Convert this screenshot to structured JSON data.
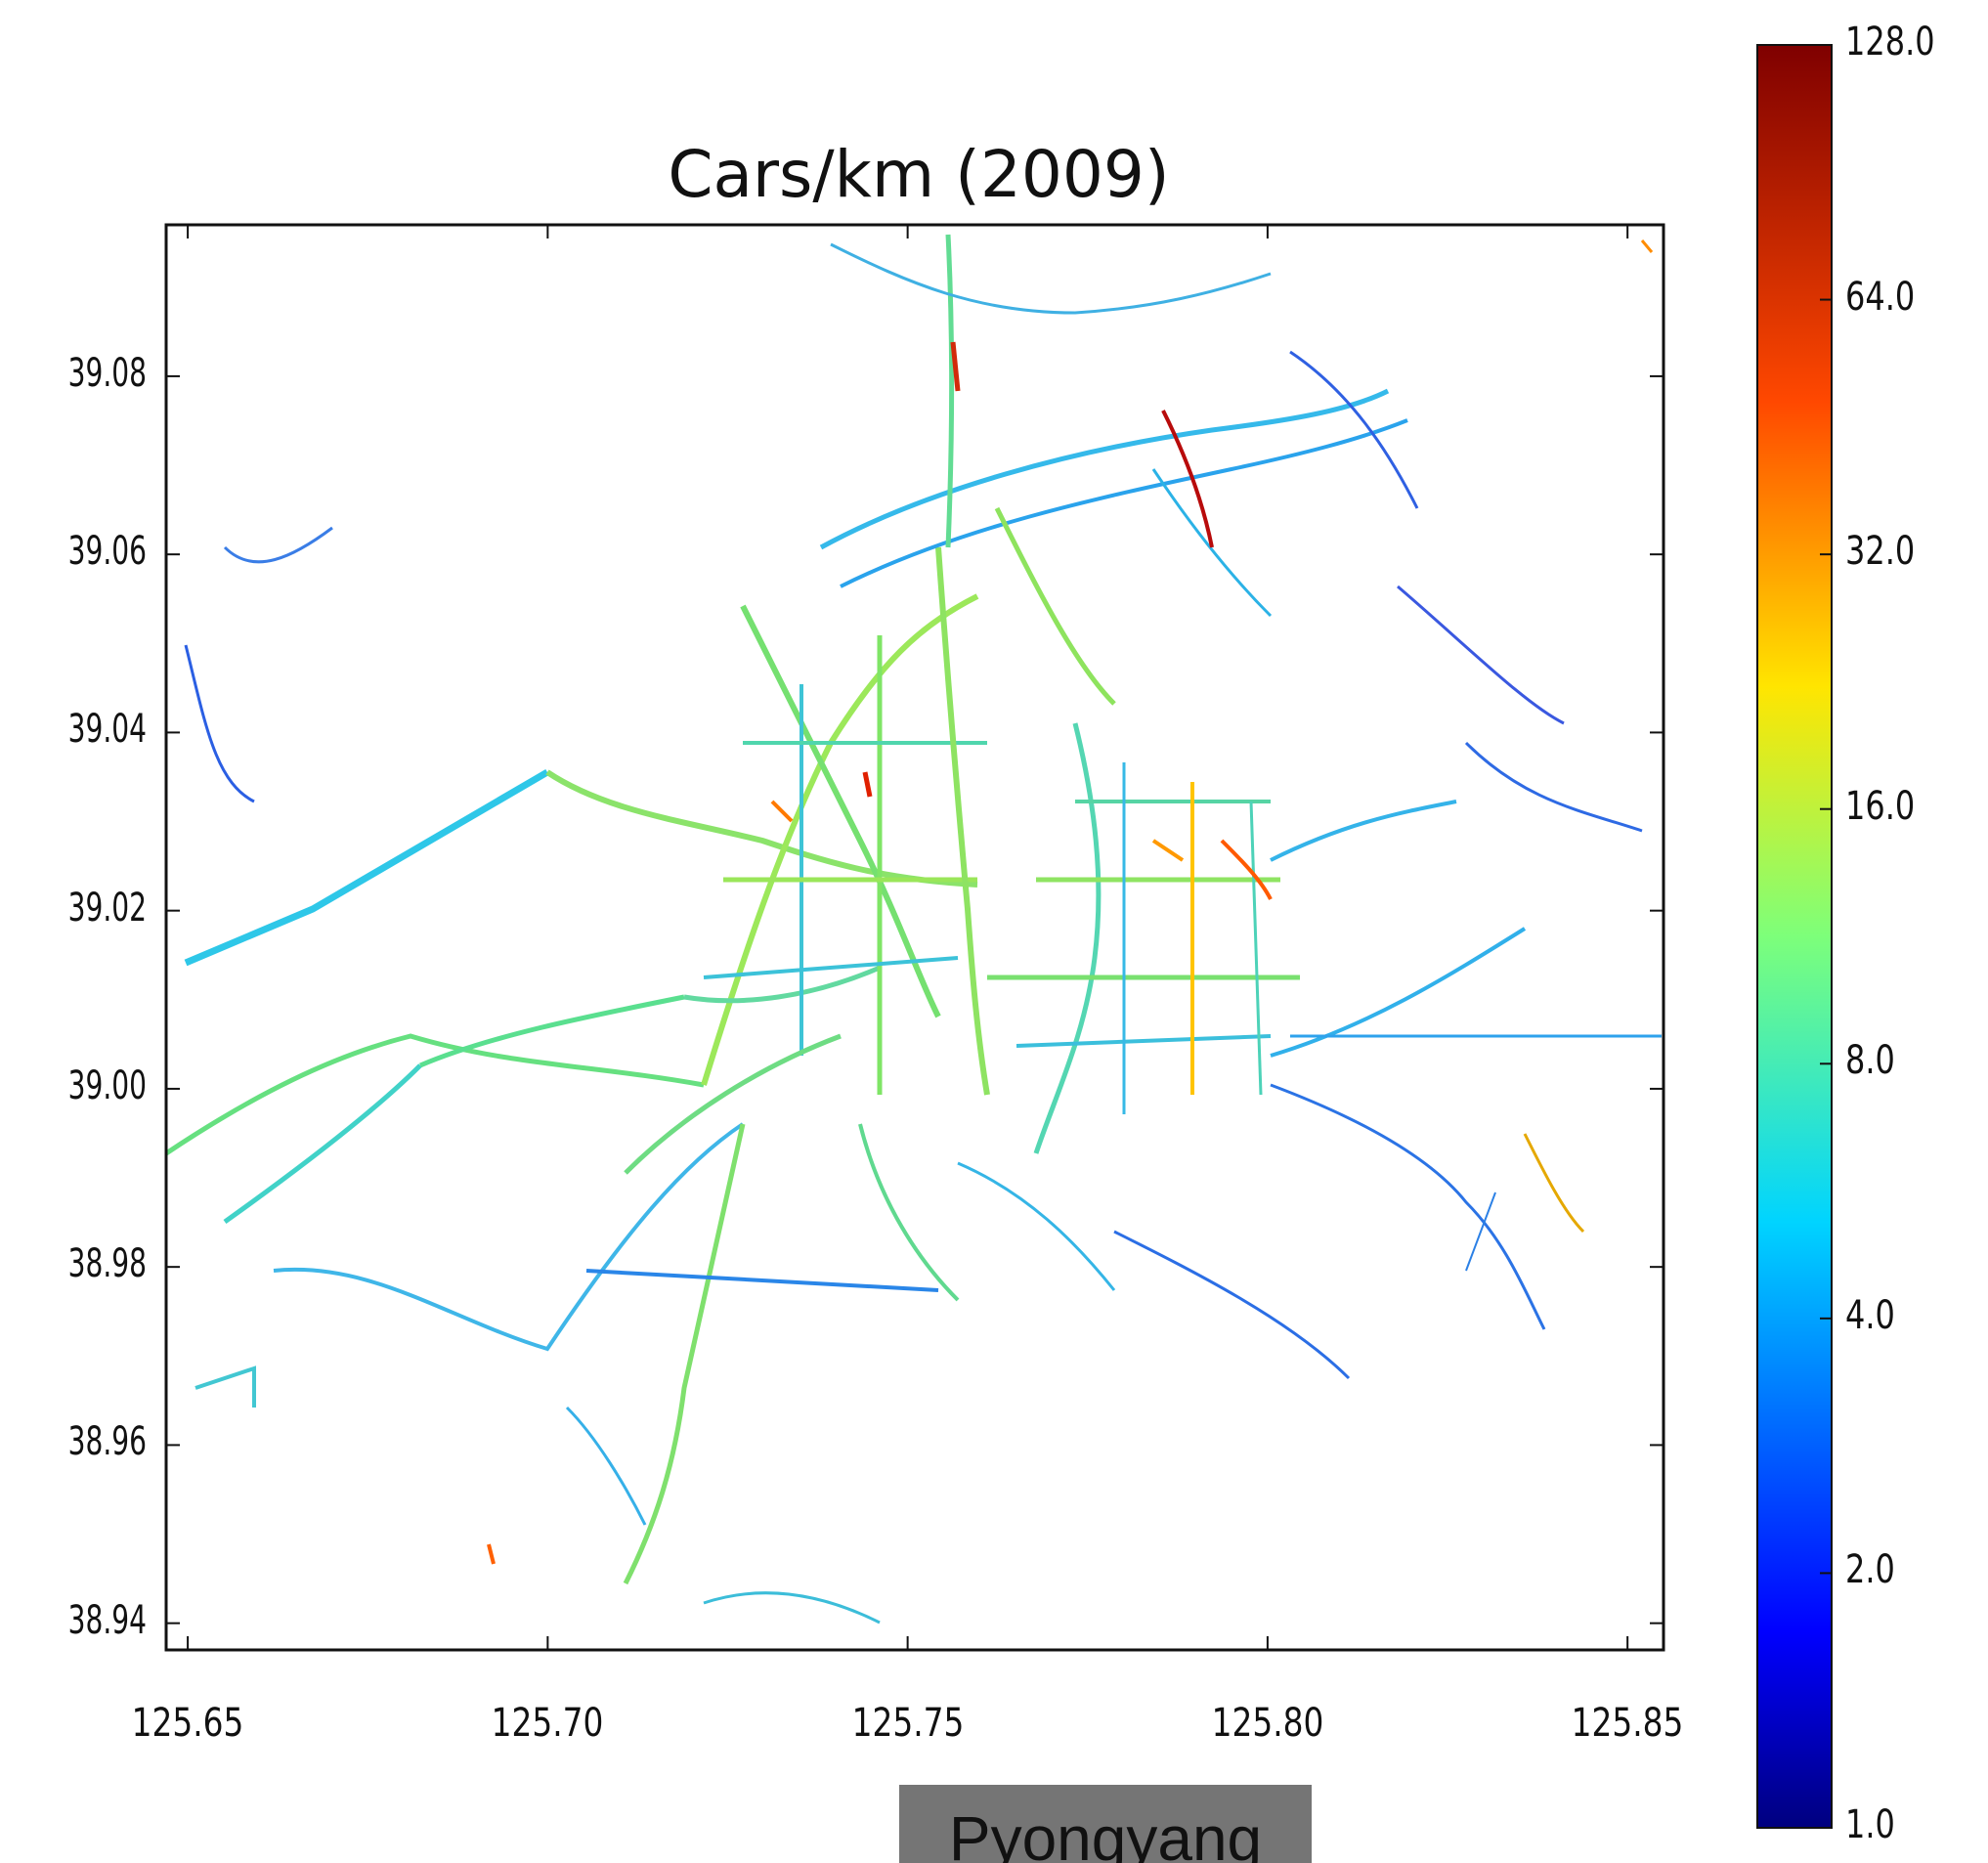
{
  "chart_data": {
    "type": "map",
    "title": "Cars/km (2009)",
    "x_ticks": [
      "125.65",
      "125.70",
      "125.75",
      "125.80",
      "125.85"
    ],
    "y_ticks": [
      "39.08",
      "39.06",
      "39.04",
      "39.02",
      "39.00",
      "38.98",
      "38.96",
      "38.94"
    ],
    "xlim": [
      125.647,
      125.855
    ],
    "ylim": [
      38.937,
      39.097
    ],
    "colorbar": {
      "scale": "log2",
      "ticks": [
        "128.0",
        "64.0",
        "32.0",
        "16.0",
        "8.0",
        "4.0",
        "2.0",
        "1.0"
      ],
      "colormap": "jet"
    }
  },
  "place_label": "Pyongyang",
  "colors": {
    "axis": "#111111",
    "label_box": "#757575"
  }
}
